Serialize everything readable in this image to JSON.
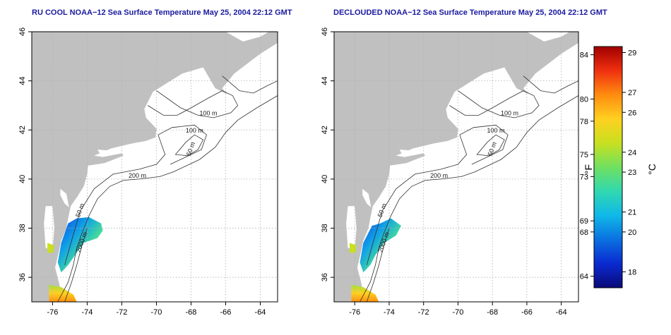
{
  "panels": [
    {
      "title": "RU COOL NOAA−12 Sea Surface Temperature May 25, 2004 22:12 GMT",
      "contour_labels": [
        "100 m",
        "100 m",
        "50 m",
        "200 m",
        "50 m",
        "2000 m"
      ]
    },
    {
      "title": "DECLOUDED NOAA−12 Sea Surface Temperature May 25, 2004 22:12 GMT",
      "contour_labels": [
        "100 m",
        "100 m",
        "50 m",
        "200 m",
        "50 m",
        "2000 m"
      ]
    }
  ],
  "axes": {
    "lon_ticks": [
      "-76",
      "-74",
      "-72",
      "-70",
      "-68",
      "-66",
      "-64"
    ],
    "lat_ticks": [
      "36",
      "38",
      "40",
      "42",
      "44",
      "46"
    ]
  },
  "colorbar": {
    "fahrenheit_unit": "°F",
    "celsius_unit": "°C",
    "fahrenheit_ticks": [
      "84",
      "80",
      "78",
      "75",
      "73",
      "69",
      "68",
      "64"
    ],
    "celsius_ticks": [
      "29",
      "27",
      "26",
      "24",
      "23",
      "21",
      "20",
      "18"
    ],
    "colors": [
      "#0a0a78",
      "#0a2ad0",
      "#0a70e0",
      "#10b8e8",
      "#30d8b0",
      "#70e060",
      "#c8e020",
      "#ffd020",
      "#ff8c10",
      "#f03010",
      "#a00000"
    ]
  },
  "colors": {
    "land": "#c0c0c0",
    "ocean": "#ffffff",
    "contour": "#303030",
    "grid": "#b0b0b0",
    "title": "#1a1aa0"
  }
}
